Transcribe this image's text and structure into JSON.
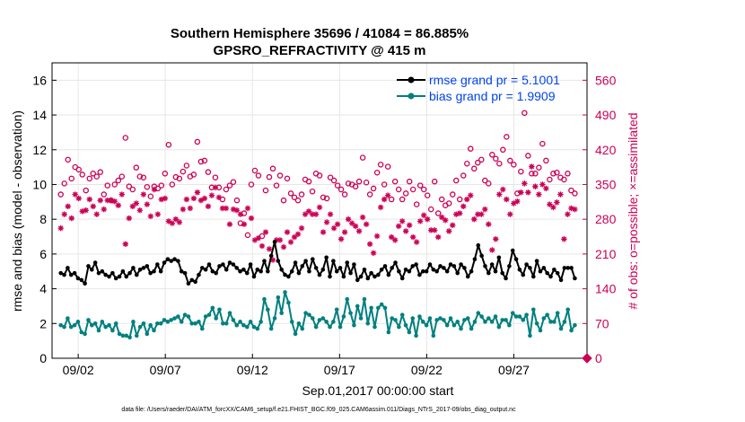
{
  "chart_data": {
    "type": "line",
    "title": "Southern Hemisphere 35696 / 41084 = 86.885%",
    "subtitle": "GPSRO_REFRACTIVITY @ 415 m",
    "xlabel": "Sep.01,2017 00:00:00 start",
    "ylabel": "rmse and bias (model - observation)",
    "y2label": "# of obs: o=possible; ×=assimilated",
    "footnote": "data file: /Users/raeder/DAI/ATM_forcXX/CAM6_setup/f.e21.FHIST_BGC.f09_025.CAM6assim.011/Diags_NTrS_2017-09/obs_diag_output.nc",
    "xlim": [
      0.5,
      31.2
    ],
    "ylim": [
      0,
      17
    ],
    "y2lim": [
      0,
      595
    ],
    "x_ticks": [
      2,
      7,
      12,
      17,
      22,
      27
    ],
    "x_tick_labels": [
      "09/02",
      "09/07",
      "09/12",
      "09/17",
      "09/22",
      "09/27"
    ],
    "y_ticks": [
      0,
      2,
      4,
      6,
      8,
      10,
      12,
      14,
      16
    ],
    "y_tick_labels": [
      "0",
      "2",
      "4",
      "6",
      "8",
      "10",
      "12",
      "14",
      "16"
    ],
    "y2_ticks": [
      0,
      70,
      140,
      210,
      280,
      350,
      420,
      490,
      560
    ],
    "y2_tick_labels": [
      "0",
      "70",
      "140",
      "210",
      "280",
      "350",
      "420",
      "490",
      "560"
    ],
    "grid": true,
    "legend_position": "top-right",
    "colors": {
      "rmse": "#000000",
      "bias": "#00807f",
      "obs": "#cc0055",
      "legend_text": "#0044ee"
    },
    "series": [
      {
        "name": "rmse grand pr = 5.1001",
        "axis": "left",
        "values": [
          4.9,
          4.8,
          5.2,
          4.8,
          4.9,
          4.6,
          4.5,
          4.3,
          5.3,
          5.1,
          5.5,
          4.9,
          5.0,
          4.8,
          4.7,
          4.9,
          4.6,
          4.7,
          5.0,
          4.7,
          4.9,
          5.2,
          4.8,
          5.1,
          5.2,
          5.3,
          4.9,
          5.0,
          5.4,
          5.0,
          5.5,
          5.7,
          5.6,
          5.7,
          5.6,
          5.0,
          4.9,
          4.3,
          4.5,
          4.4,
          4.8,
          5.2,
          5.1,
          5.4,
          5.0,
          4.9,
          5.3,
          5.4,
          5.1,
          5.5,
          5.4,
          5.2,
          5.0,
          5.1,
          4.9,
          5.4,
          4.7,
          5.1,
          5.0,
          5.6,
          5.0,
          5.9,
          6.7,
          5.6,
          5.1,
          4.8,
          4.7,
          5.0,
          5.5,
          4.9,
          5.3,
          5.6,
          5.0,
          5.7,
          5.2,
          4.8,
          5.1,
          5.8,
          4.7,
          5.6,
          5.0,
          5.2,
          4.7,
          5.5,
          4.9,
          5.4,
          4.5,
          4.7,
          5.1,
          4.6,
          4.9,
          4.7,
          4.8,
          5.1,
          5.3,
          4.8,
          5.2,
          5.5,
          5.0,
          4.6,
          5.1,
          5.0,
          5.3,
          5.4,
          4.8,
          5.0,
          5.0,
          5.4,
          5.1,
          5.0,
          5.3,
          5.2,
          5.0,
          5.4,
          5.3,
          4.9,
          5.4,
          5.2,
          4.7,
          5.0,
          5.7,
          6.5,
          5.9,
          5.3,
          4.9,
          5.4,
          5.0,
          5.8,
          4.9,
          4.6,
          5.3,
          6.2,
          5.7,
          5.1,
          4.8,
          5.4,
          5.2,
          4.7,
          5.6,
          5.0,
          5.2,
          4.9,
          4.7,
          5.1,
          4.9,
          4.5,
          5.2,
          5.2,
          5.2,
          4.6
        ]
      },
      {
        "name": "bias grand pr = 1.9909",
        "axis": "left",
        "values": [
          1.9,
          1.8,
          2.3,
          1.8,
          1.9,
          2.1,
          1.5,
          1.4,
          2.2,
          1.9,
          2.0,
          1.6,
          2.1,
          1.8,
          1.9,
          1.6,
          2.0,
          1.4,
          1.3,
          1.3,
          1.2,
          2.1,
          1.3,
          1.8,
          2.0,
          1.4,
          1.9,
          1.6,
          2.0,
          2.0,
          2.2,
          2.1,
          2.2,
          2.3,
          2.4,
          2.1,
          2.5,
          2.4,
          2.0,
          2.0,
          2.1,
          1.7,
          2.4,
          2.5,
          2.9,
          2.3,
          2.8,
          2.0,
          2.0,
          2.6,
          2.2,
          1.9,
          2.1,
          1.9,
          1.8,
          2.1,
          1.8,
          1.7,
          2.1,
          3.4,
          2.8,
          1.7,
          2.3,
          3.5,
          2.6,
          3.8,
          3.2,
          2.1,
          1.4,
          2.0,
          1.7,
          2.6,
          2.5,
          2.3,
          1.8,
          2.2,
          2.3,
          2.1,
          1.8,
          2.1,
          2.8,
          1.8,
          2.4,
          3.4,
          2.6,
          1.9,
          3.0,
          2.3,
          3.4,
          2.0,
          2.9,
          1.8,
          2.9,
          3.1,
          2.9,
          1.5,
          2.3,
          2.2,
          1.8,
          2.5,
          1.9,
          1.5,
          2.3,
          1.3,
          2.4,
          2.1,
          1.9,
          2.3,
          1.3,
          2.2,
          2.3,
          2.2,
          1.9,
          2.3,
          1.9,
          2.1,
          1.7,
          2.2,
          2.3,
          1.7,
          2.1,
          2.6,
          2.4,
          2.1,
          2.3,
          2.1,
          2.4,
          1.8,
          2.2,
          2.2,
          1.9,
          2.6,
          2.4,
          2.4,
          2.2,
          2.5,
          1.3,
          2.8,
          2.0,
          1.6,
          2.3,
          2.5,
          2.1,
          2.1,
          2.6,
          1.7,
          2.1,
          2.8,
          1.6,
          1.9
        ]
      },
      {
        "name": "possible",
        "axis": "right",
        "marker": "o",
        "values": [
          330,
          352,
          400,
          362,
          385,
          380,
          370,
          338,
          362,
          372,
          366,
          375,
          330,
          348,
          318,
          350,
          358,
          366,
          444,
          346,
          340,
          384,
          366,
          364,
          345,
          326,
          346,
          342,
          348,
          372,
          430,
          350,
          365,
          362,
          376,
          388,
          366,
          370,
          436,
          396,
          398,
          375,
          344,
          364,
          344,
          320,
          340,
          348,
          355,
          318,
          272,
          292,
          248,
          350,
          378,
          368,
          246,
          338,
          365,
          382,
          348,
          368,
          318,
          362,
          332,
          324,
          318,
          330,
          360,
          356,
          336,
          372,
          368,
          324,
          322,
          364,
          358,
          348,
          340,
          330,
          352,
          350,
          346,
          356,
          404,
          354,
          330,
          342,
          374,
          390,
          350,
          386,
          320,
          356,
          340,
          320,
          332,
          356,
          340,
          310,
          348,
          340,
          328,
          300,
          356,
          292,
          320,
          308,
          312,
          330,
          358,
          320,
          368,
          392,
          422,
          382,
          394,
          400,
          358,
          352,
          410,
          402,
          392,
          420,
          446,
          398,
          390,
          332,
          376,
          494,
          408,
          372,
          372,
          384,
          432,
          398,
          360,
          372,
          374,
          364,
          360,
          372,
          338,
          332
        ]
      },
      {
        "name": "assimilated",
        "axis": "right",
        "marker": "x",
        "values": [
          262,
          290,
          306,
          282,
          330,
          322,
          296,
          298,
          320,
          306,
          290,
          318,
          300,
          318,
          318,
          316,
          308,
          330,
          230,
          282,
          306,
          312,
          298,
          330,
          310,
          286,
          340,
          290,
          320,
          322,
          276,
          272,
          280,
          274,
          300,
          320,
          302,
          322,
          334,
          318,
          322,
          306,
          328,
          344,
          324,
          302,
          302,
          270,
          300,
          298,
          290,
          270,
          302,
          282,
          238,
          242,
          226,
          254,
          220,
          198,
          238,
          238,
          224,
          254,
          234,
          244,
          250,
          262,
          290,
          296,
          290,
          290,
          304,
          254,
          274,
          290,
          262,
          270,
          240,
          254,
          280,
          272,
          266,
          256,
          284,
          270,
          230,
          212,
          246,
          304,
          320,
          328,
          244,
          238,
          266,
          276,
          256,
          268,
          244,
          234,
          276,
          288,
          280,
          258,
          258,
          244,
          284,
          278,
          256,
          268,
          290,
          292,
          306,
          320,
          328,
          280,
          290,
          290,
          300,
          270,
          218,
          240,
          330,
          340,
          320,
          290,
          312,
          316,
          334,
          352,
          334,
          386,
          346,
          330,
          350,
          342,
          310,
          304,
          314,
          330,
          240,
          290,
          302,
          300
        ]
      }
    ],
    "extra_mark": {
      "x": 31.2,
      "y2": 0
    }
  }
}
